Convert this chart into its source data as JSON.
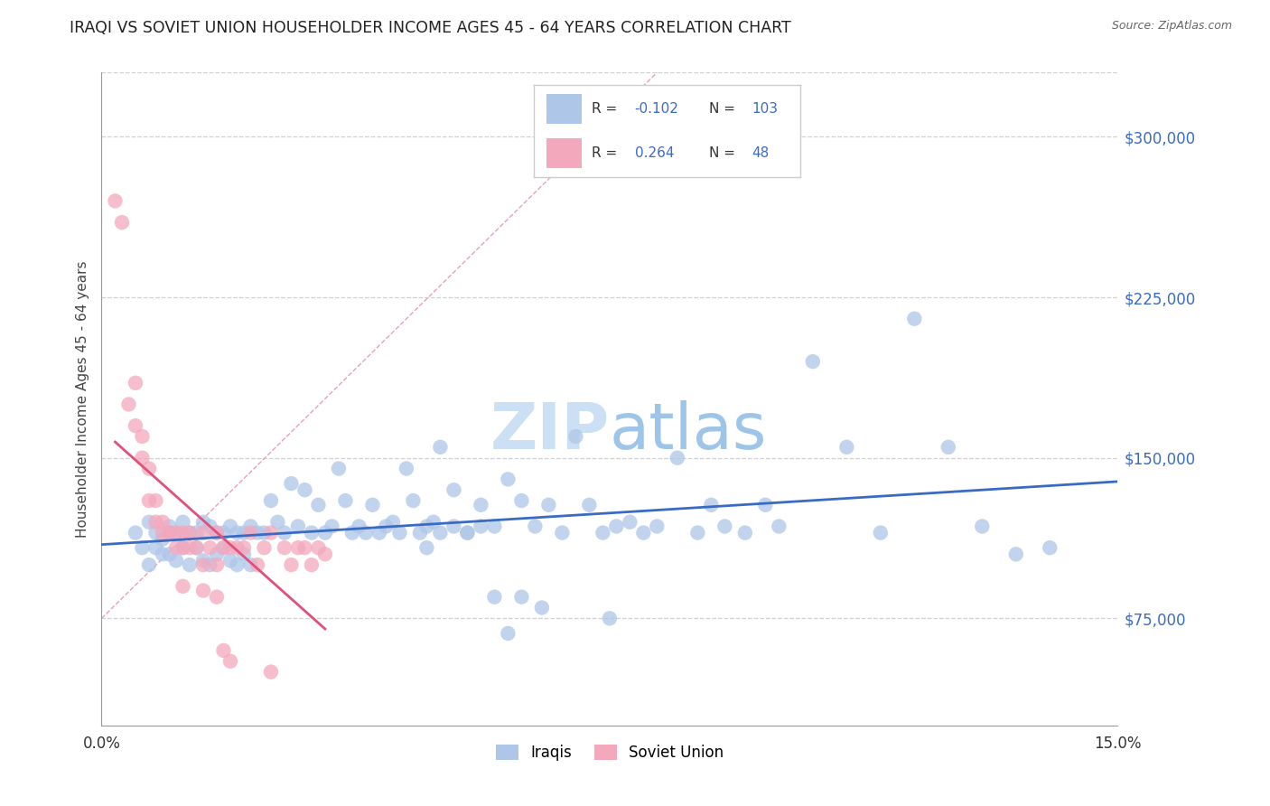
{
  "title": "IRAQI VS SOVIET UNION HOUSEHOLDER INCOME AGES 45 - 64 YEARS CORRELATION CHART",
  "source": "Source: ZipAtlas.com",
  "ylabel_label": "Householder Income Ages 45 - 64 years",
  "ylabel_values": [
    75000,
    150000,
    225000,
    300000
  ],
  "xmin": 0.0,
  "xmax": 0.15,
  "ymin": 25000,
  "ymax": 330000,
  "iraqis_R": -0.102,
  "iraqis_N": 103,
  "soviet_R": 0.264,
  "soviet_N": 48,
  "iraqis_color": "#aec6e8",
  "soviet_color": "#f4a8bc",
  "iraqis_line_color": "#3a6bc4",
  "soviet_line_color": "#e0507a",
  "legend_R_color": "#3a6bc4",
  "legend_N_color": "#3a6bc4",
  "iraqis_scatter_x": [
    0.005,
    0.006,
    0.007,
    0.007,
    0.008,
    0.008,
    0.009,
    0.009,
    0.01,
    0.01,
    0.011,
    0.011,
    0.012,
    0.012,
    0.013,
    0.013,
    0.014,
    0.014,
    0.015,
    0.015,
    0.016,
    0.016,
    0.017,
    0.017,
    0.018,
    0.018,
    0.019,
    0.019,
    0.02,
    0.02,
    0.021,
    0.021,
    0.022,
    0.022,
    0.023,
    0.024,
    0.025,
    0.026,
    0.027,
    0.028,
    0.029,
    0.03,
    0.031,
    0.032,
    0.033,
    0.034,
    0.035,
    0.036,
    0.037,
    0.038,
    0.039,
    0.04,
    0.041,
    0.042,
    0.043,
    0.044,
    0.045,
    0.046,
    0.047,
    0.048,
    0.049,
    0.05,
    0.052,
    0.054,
    0.056,
    0.058,
    0.06,
    0.062,
    0.064,
    0.066,
    0.068,
    0.07,
    0.072,
    0.074,
    0.076,
    0.078,
    0.08,
    0.082,
    0.085,
    0.088,
    0.09,
    0.092,
    0.095,
    0.098,
    0.1,
    0.105,
    0.11,
    0.115,
    0.12,
    0.125,
    0.13,
    0.135,
    0.048,
    0.05,
    0.052,
    0.054,
    0.056,
    0.058,
    0.06,
    0.062,
    0.065,
    0.075,
    0.14
  ],
  "iraqis_scatter_y": [
    115000,
    108000,
    120000,
    100000,
    115000,
    108000,
    112000,
    105000,
    118000,
    105000,
    115000,
    102000,
    120000,
    108000,
    115000,
    100000,
    115000,
    108000,
    120000,
    102000,
    118000,
    100000,
    115000,
    105000,
    115000,
    108000,
    118000,
    102000,
    115000,
    100000,
    115000,
    105000,
    118000,
    100000,
    115000,
    115000,
    130000,
    120000,
    115000,
    138000,
    118000,
    135000,
    115000,
    128000,
    115000,
    118000,
    145000,
    130000,
    115000,
    118000,
    115000,
    128000,
    115000,
    118000,
    120000,
    115000,
    145000,
    130000,
    115000,
    118000,
    120000,
    155000,
    135000,
    115000,
    128000,
    118000,
    140000,
    130000,
    118000,
    128000,
    115000,
    160000,
    128000,
    115000,
    118000,
    120000,
    115000,
    118000,
    150000,
    115000,
    128000,
    118000,
    115000,
    128000,
    118000,
    195000,
    155000,
    115000,
    215000,
    155000,
    118000,
    105000,
    108000,
    115000,
    118000,
    115000,
    118000,
    85000,
    68000,
    85000,
    80000,
    75000,
    108000
  ],
  "soviet_scatter_x": [
    0.002,
    0.003,
    0.004,
    0.005,
    0.005,
    0.006,
    0.006,
    0.007,
    0.007,
    0.008,
    0.008,
    0.009,
    0.009,
    0.01,
    0.01,
    0.011,
    0.011,
    0.012,
    0.012,
    0.013,
    0.013,
    0.014,
    0.015,
    0.015,
    0.016,
    0.017,
    0.017,
    0.018,
    0.019,
    0.02,
    0.021,
    0.022,
    0.023,
    0.024,
    0.025,
    0.027,
    0.028,
    0.029,
    0.03,
    0.031,
    0.032,
    0.033,
    0.012,
    0.015,
    0.017,
    0.018,
    0.019,
    0.025
  ],
  "soviet_scatter_y": [
    270000,
    260000,
    175000,
    185000,
    165000,
    160000,
    150000,
    145000,
    130000,
    130000,
    120000,
    120000,
    115000,
    115000,
    115000,
    115000,
    108000,
    115000,
    108000,
    108000,
    115000,
    108000,
    115000,
    100000,
    108000,
    115000,
    100000,
    108000,
    108000,
    108000,
    108000,
    115000,
    100000,
    108000,
    115000,
    108000,
    100000,
    108000,
    108000,
    100000,
    108000,
    105000,
    90000,
    88000,
    85000,
    60000,
    55000,
    50000
  ],
  "diag_line_x": [
    0.0,
    0.082
  ],
  "diag_line_y": [
    75000,
    330000
  ],
  "grid_color": "#d0d0d0",
  "watermark_zip_color": "#cce0f5",
  "watermark_atlas_color": "#9ec5e8"
}
